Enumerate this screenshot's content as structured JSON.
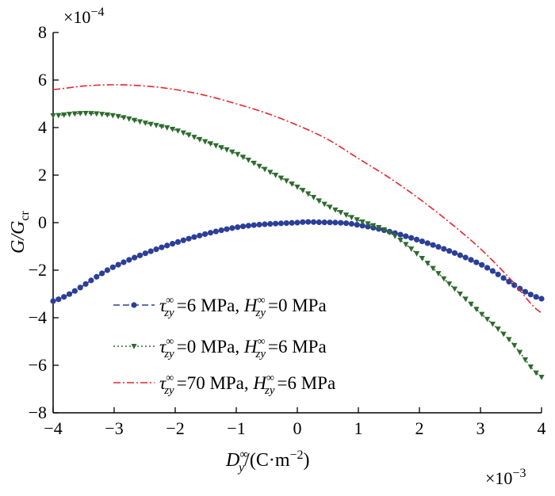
{
  "chart_data": {
    "type": "line",
    "title": "",
    "xlabel": {
      "main": "D",
      "sup": "∞",
      "sub": "y",
      "unit_prefix": "/(C·m",
      "unit_exp": "−2",
      "unit_suffix": ")"
    },
    "ylabel": {
      "main": "G/G",
      "sub": "cr"
    },
    "x_multiplier": "×10",
    "x_multiplier_exp": "−3",
    "y_multiplier": "×10",
    "y_multiplier_exp": "−4",
    "xlim": [
      -4,
      4
    ],
    "ylim": [
      -8,
      8
    ],
    "xticks": [
      "−4",
      "−3",
      "−2",
      "−1",
      "0",
      "1",
      "2",
      "3",
      "4"
    ],
    "yticks": [
      "8",
      "6",
      "4",
      "2",
      "0",
      "−2",
      "−4",
      "−6",
      "−8"
    ],
    "grid": false,
    "legend_position": "bottom-left",
    "series": [
      {
        "tau": "6",
        "H": "0",
        "color": "#2b3f97",
        "marker": "circle",
        "dash": "dashed",
        "legend_label": {
          "tau_sym": "τ",
          "sub": "zy",
          "sup": "∞",
          "tau_val": "=6 MPa, ",
          "h_sym": "H",
          "h_val": "=0 MPa"
        },
        "x": [
          -4,
          -3,
          -2,
          -1,
          0,
          0.3,
          1,
          2,
          3,
          4
        ],
        "y": [
          -3.3,
          -1.85,
          -0.85,
          -0.2,
          0.0,
          0.02,
          -0.1,
          -0.75,
          -1.75,
          -3.2
        ]
      },
      {
        "tau": "0",
        "H": "6",
        "color": "#2e6b2e",
        "marker": "triangle-down",
        "dash": "dotted",
        "legend_label": {
          "tau_sym": "τ",
          "sub": "zy",
          "sup": "∞",
          "tau_val": "=0 MPa, ",
          "h_sym": "H",
          "h_val": "=6 MPa"
        },
        "x": [
          -4,
          -3.5,
          -3,
          -2.5,
          -2,
          -1.5,
          -1,
          -0.5,
          0,
          0.5,
          1,
          1.5,
          2,
          2.5,
          3,
          3.5,
          4
        ],
        "y": [
          4.5,
          4.6,
          4.5,
          4.2,
          3.9,
          3.4,
          2.9,
          2.2,
          1.5,
          0.7,
          0.1,
          -0.4,
          -1.4,
          -2.6,
          -3.8,
          -5.0,
          -6.5
        ]
      },
      {
        "tau": "70",
        "H": "6",
        "color": "#e8242a",
        "marker": "none",
        "dash": "dash-dot",
        "legend_label": {
          "tau_sym": "τ",
          "sub": "zy",
          "sup": "∞",
          "tau_val": "=70 MPa, ",
          "h_sym": "H",
          "h_val": "=6 MPa"
        },
        "x": [
          -4,
          -3.5,
          -3,
          -2.5,
          -2,
          -1.5,
          -1,
          -0.5,
          0,
          0.5,
          1,
          1.5,
          2,
          2.5,
          3,
          3.5,
          4
        ],
        "y": [
          5.6,
          5.75,
          5.8,
          5.75,
          5.6,
          5.35,
          5.0,
          4.6,
          4.1,
          3.5,
          2.7,
          1.9,
          1.0,
          0.0,
          -1.1,
          -2.4,
          -3.8
        ]
      }
    ]
  }
}
